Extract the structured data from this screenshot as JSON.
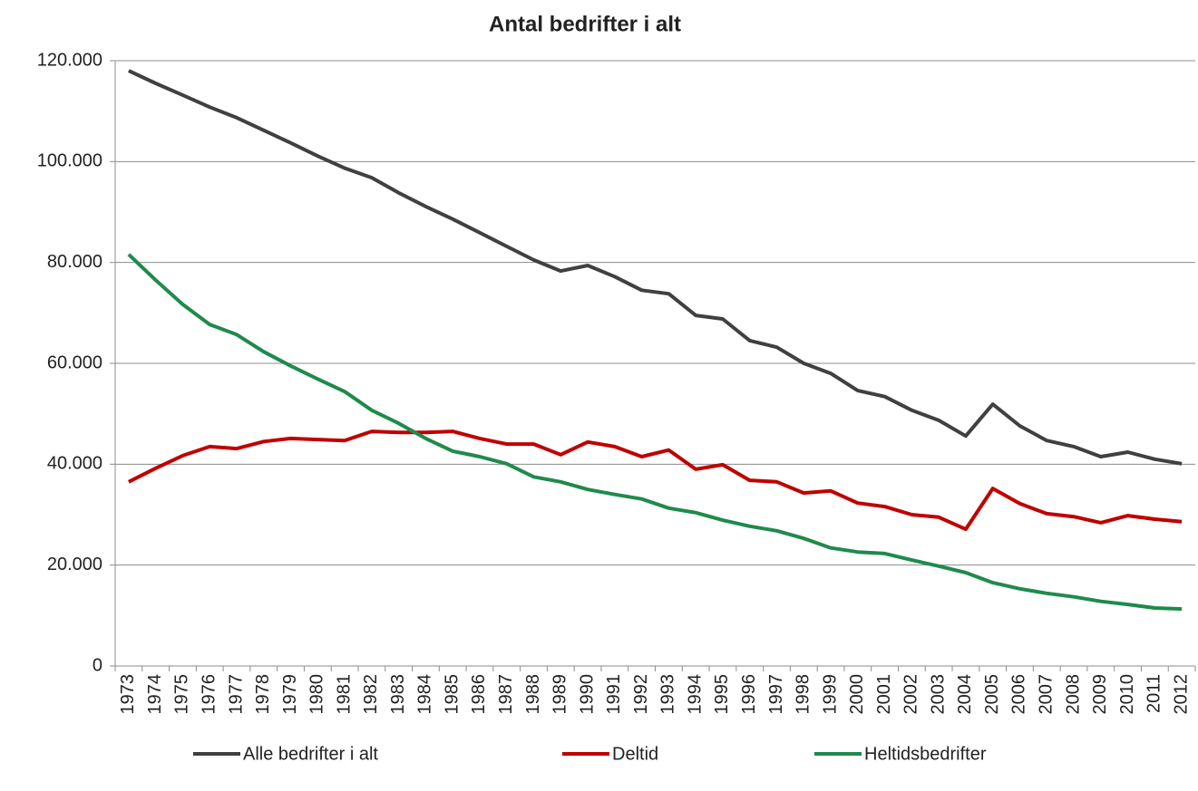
{
  "chart_data": {
    "type": "line",
    "title": "Antal bedrifter i alt",
    "categories": [
      "1973",
      "1974",
      "1975",
      "1976",
      "1977",
      "1978",
      "1979",
      "1980",
      "1981",
      "1982",
      "1983",
      "1984",
      "1985",
      "1986",
      "1987",
      "1988",
      "1989",
      "1990",
      "1991",
      "1992",
      "1993",
      "1994",
      "1995",
      "1996",
      "1997",
      "1998",
      "1999",
      "2000",
      "2001",
      "2002",
      "2003",
      "2004",
      "2005",
      "2006",
      "2007",
      "2008",
      "2009",
      "2010",
      "2011",
      "2012"
    ],
    "series": [
      {
        "name": "Alle bedrifter i alt",
        "color": "#404040",
        "values": [
          118000,
          115500,
          113200,
          110800,
          108700,
          106200,
          103700,
          101100,
          98700,
          96800,
          93800,
          91100,
          88600,
          85900,
          83200,
          80500,
          78300,
          79400,
          77200,
          74500,
          73800,
          69500,
          68800,
          64500,
          63200,
          60000,
          58000,
          54600,
          53400,
          50700,
          48700,
          45600,
          51900,
          47600,
          44700,
          43500,
          41500,
          42400,
          41000,
          40100
        ]
      },
      {
        "name": "Deltid",
        "color": "#c00000",
        "values": [
          36500,
          39200,
          41700,
          43500,
          43100,
          44500,
          45100,
          44900,
          44700,
          46500,
          46300,
          46300,
          46500,
          45100,
          44000,
          44000,
          41900,
          44400,
          43500,
          41500,
          42800,
          39000,
          39900,
          36800,
          36500,
          34300,
          34700,
          32300,
          31600,
          30000,
          29500,
          27100,
          35200,
          32200,
          30200,
          29600,
          28400,
          29800,
          29100,
          28600
        ]
      },
      {
        "name": "Heltidsbedrifter",
        "color": "#1f8a4c",
        "values": [
          81600,
          76500,
          71700,
          67700,
          65700,
          62300,
          59500,
          56900,
          54400,
          50700,
          48100,
          45100,
          42600,
          41500,
          40100,
          37500,
          36500,
          35000,
          34000,
          33100,
          31300,
          30400,
          28900,
          27700,
          26800,
          25300,
          23400,
          22600,
          22300,
          21000,
          19800,
          18500,
          16500,
          15300,
          14400,
          13700,
          12800,
          12200,
          11500,
          11300
        ]
      }
    ],
    "ylim": [
      0,
      120000
    ],
    "yticks": [
      0,
      {
        "value": 20000,
        "label": "20.000"
      },
      {
        "value": 40000,
        "label": "40.000"
      },
      {
        "value": 60000,
        "label": "60.000"
      },
      {
        "value": 80000,
        "label": "80.000"
      },
      {
        "value": 100000,
        "label": "100.000"
      },
      {
        "value": 120000,
        "label": "120.000"
      }
    ],
    "grid": true,
    "legend": "bottom"
  }
}
